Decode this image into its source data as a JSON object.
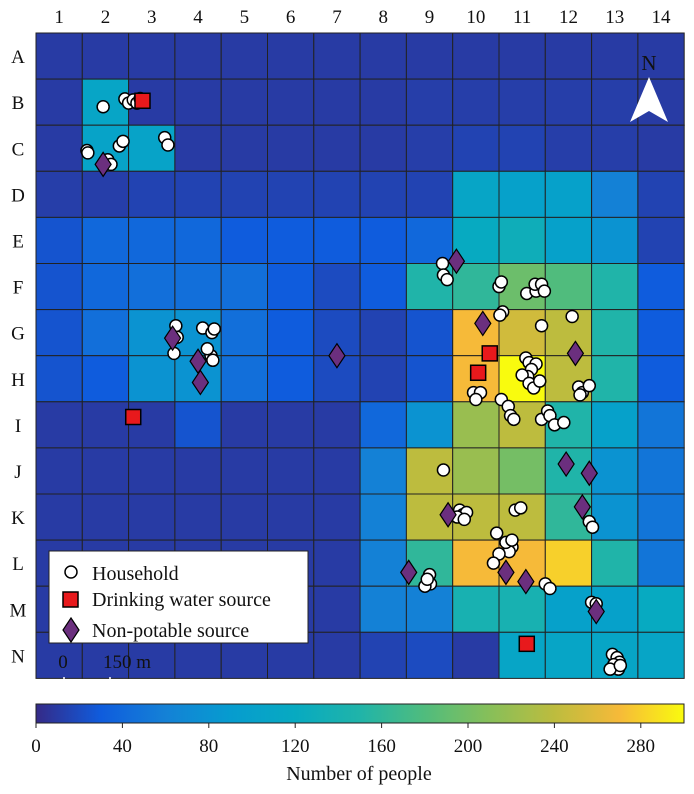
{
  "columns": [
    "1",
    "2",
    "3",
    "4",
    "5",
    "6",
    "7",
    "8",
    "9",
    "10",
    "11",
    "12",
    "13",
    "14"
  ],
  "rows": [
    "A",
    "B",
    "C",
    "D",
    "E",
    "F",
    "G",
    "H",
    "I",
    "J",
    "K",
    "L",
    "M",
    "N"
  ],
  "north_label": "N",
  "grid_values": [
    [
      10,
      10,
      10,
      10,
      10,
      10,
      10,
      10,
      10,
      10,
      10,
      10,
      10,
      10
    ],
    [
      10,
      110,
      10,
      10,
      10,
      10,
      10,
      10,
      12,
      12,
      12,
      12,
      12,
      10
    ],
    [
      10,
      105,
      105,
      10,
      10,
      10,
      10,
      10,
      12,
      15,
      15,
      12,
      12,
      10
    ],
    [
      12,
      12,
      15,
      15,
      15,
      15,
      15,
      15,
      15,
      110,
      100,
      100,
      60,
      15
    ],
    [
      25,
      40,
      40,
      40,
      30,
      30,
      30,
      30,
      40,
      120,
      130,
      100,
      80,
      15
    ],
    [
      25,
      40,
      45,
      45,
      45,
      30,
      20,
      30,
      150,
      160,
      195,
      180,
      150,
      30
    ],
    [
      25,
      45,
      80,
      80,
      45,
      30,
      20,
      15,
      25,
      270,
      250,
      240,
      150,
      30
    ],
    [
      25,
      30,
      80,
      80,
      45,
      30,
      20,
      15,
      25,
      270,
      300,
      240,
      150,
      30
    ],
    [
      10,
      10,
      10,
      25,
      10,
      10,
      10,
      40,
      80,
      220,
      240,
      150,
      100,
      50
    ],
    [
      10,
      10,
      10,
      10,
      10,
      10,
      10,
      60,
      240,
      220,
      200,
      150,
      80,
      50
    ],
    [
      10,
      10,
      10,
      10,
      10,
      10,
      10,
      60,
      240,
      240,
      240,
      160,
      80,
      50
    ],
    [
      10,
      10,
      10,
      10,
      10,
      10,
      10,
      60,
      160,
      270,
      270,
      280,
      150,
      50
    ],
    [
      10,
      10,
      10,
      10,
      10,
      10,
      10,
      60,
      60,
      140,
      140,
      100,
      100,
      120
    ],
    [
      10,
      10,
      10,
      10,
      10,
      10,
      10,
      15,
      20,
      10,
      110,
      110,
      110,
      110
    ]
  ],
  "households": [
    [
      2.42,
      1.93
    ],
    [
      2.5,
      2.02
    ],
    [
      2.6,
      1.95
    ],
    [
      2.68,
      2.02
    ],
    [
      2.75,
      1.92
    ],
    [
      1.95,
      2.1
    ],
    [
      1.6,
      3.05
    ],
    [
      1.62,
      3.1
    ],
    [
      2.3,
      2.95
    ],
    [
      2.38,
      2.85
    ],
    [
      2.05,
      3.25
    ],
    [
      2.12,
      3.35
    ],
    [
      3.28,
      2.77
    ],
    [
      3.35,
      2.93
    ],
    [
      9.28,
      5.5
    ],
    [
      9.3,
      5.75
    ],
    [
      9.38,
      5.85
    ],
    [
      10.5,
      6.0
    ],
    [
      10.55,
      5.9
    ],
    [
      10.58,
      6.55
    ],
    [
      10.52,
      6.62
    ],
    [
      11.1,
      6.15
    ],
    [
      11.3,
      6.1
    ],
    [
      11.28,
      5.95
    ],
    [
      11.42,
      5.95
    ],
    [
      11.48,
      6.1
    ],
    [
      11.42,
      6.85
    ],
    [
      12.08,
      6.65
    ],
    [
      3.52,
      6.85
    ],
    [
      3.48,
      7.45
    ],
    [
      4.1,
      6.9
    ],
    [
      4.3,
      7.0
    ],
    [
      4.35,
      6.92
    ],
    [
      4.28,
      7.5
    ],
    [
      4.2,
      7.35
    ],
    [
      4.32,
      7.6
    ],
    [
      3.55,
      7.1
    ],
    [
      11.08,
      7.55
    ],
    [
      11.15,
      7.65
    ],
    [
      11.3,
      7.68
    ],
    [
      11.2,
      7.8
    ],
    [
      11.12,
      7.95
    ],
    [
      11.0,
      7.92
    ],
    [
      11.15,
      8.1
    ],
    [
      11.25,
      8.2
    ],
    [
      11.38,
      8.05
    ],
    [
      12.22,
      8.18
    ],
    [
      12.3,
      8.3
    ],
    [
      12.45,
      8.15
    ],
    [
      12.25,
      8.35
    ],
    [
      9.95,
      8.3
    ],
    [
      10.1,
      8.3
    ],
    [
      10.0,
      8.45
    ],
    [
      10.55,
      8.45
    ],
    [
      10.7,
      8.6
    ],
    [
      10.75,
      8.8
    ],
    [
      10.82,
      8.88
    ],
    [
      11.42,
      8.88
    ],
    [
      11.55,
      8.7
    ],
    [
      11.6,
      8.8
    ],
    [
      11.7,
      9.0
    ],
    [
      11.9,
      8.95
    ],
    [
      9.3,
      9.98
    ],
    [
      10.85,
      10.85
    ],
    [
      10.97,
      10.8
    ],
    [
      9.65,
      10.85
    ],
    [
      9.72,
      10.95
    ],
    [
      9.8,
      10.9
    ],
    [
      9.6,
      11.0
    ],
    [
      9.75,
      11.05
    ],
    [
      10.45,
      11.35
    ],
    [
      10.7,
      11.55
    ],
    [
      10.78,
      11.65
    ],
    [
      10.72,
      11.75
    ],
    [
      10.65,
      11.55
    ],
    [
      10.78,
      11.5
    ],
    [
      10.5,
      11.8
    ],
    [
      10.38,
      12.0
    ],
    [
      12.45,
      11.1
    ],
    [
      12.52,
      11.22
    ],
    [
      9.0,
      12.25
    ],
    [
      9.02,
      12.45
    ],
    [
      8.9,
      12.5
    ],
    [
      8.95,
      12.35
    ],
    [
      11.5,
      12.45
    ],
    [
      11.6,
      12.55
    ],
    [
      12.5,
      12.85
    ],
    [
      12.6,
      12.88
    ],
    [
      12.95,
      13.98
    ],
    [
      13.05,
      14.05
    ],
    [
      13.1,
      14.15
    ],
    [
      12.98,
      14.2
    ],
    [
      13.08,
      14.3
    ],
    [
      12.9,
      14.3
    ],
    [
      13.12,
      14.22
    ]
  ],
  "drinking_sources": [
    [
      2.8,
      1.97
    ],
    [
      2.6,
      8.83
    ],
    [
      10.3,
      7.45
    ],
    [
      10.05,
      7.87
    ],
    [
      11.1,
      13.75
    ]
  ],
  "non_potable_sources": [
    [
      1.95,
      3.35
    ],
    [
      3.45,
      7.12
    ],
    [
      4.0,
      7.62
    ],
    [
      4.05,
      8.08
    ],
    [
      7.0,
      7.5
    ],
    [
      9.58,
      5.45
    ],
    [
      10.15,
      6.8
    ],
    [
      12.15,
      7.45
    ],
    [
      11.95,
      9.85
    ],
    [
      12.45,
      10.05
    ],
    [
      12.3,
      10.78
    ],
    [
      9.4,
      10.95
    ],
    [
      8.55,
      12.2
    ],
    [
      10.65,
      12.2
    ],
    [
      11.08,
      12.4
    ],
    [
      12.6,
      13.05
    ]
  ],
  "legend": {
    "household": "Household",
    "drinking": "Drinking water source",
    "nonpotable": "Non-potable source"
  },
  "scale_bar": {
    "zero": "0",
    "length": "150 m"
  },
  "colorbar": {
    "label": "Number of people",
    "ticks": [
      0,
      40,
      80,
      120,
      160,
      200,
      240,
      280
    ],
    "range": [
      0,
      300
    ]
  },
  "colors": {
    "household_fill": "#ffffff",
    "drinking_fill": "#e8191c",
    "nonpotable_fill": "#6b2f7e",
    "grid_line": "#222222"
  }
}
